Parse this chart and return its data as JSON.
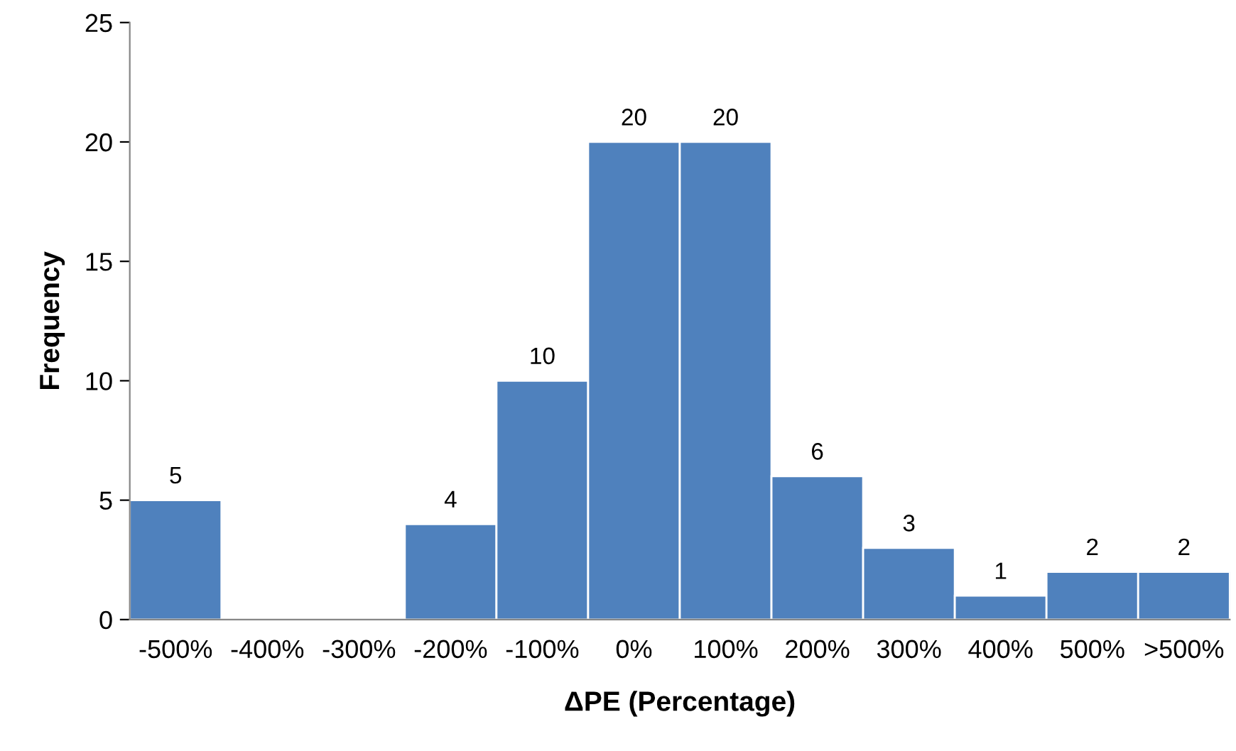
{
  "chart_data": {
    "type": "bar",
    "xlabel": "ΔPE (Percentage)",
    "ylabel": "Frequency",
    "categories": [
      "-500%",
      "-400%",
      "-300%",
      "-200%",
      "-100%",
      "0%",
      "100%",
      "200%",
      "300%",
      "400%",
      "500%",
      ">500%"
    ],
    "values": [
      5,
      0,
      0,
      4,
      10,
      20,
      20,
      6,
      3,
      1,
      2,
      2
    ],
    "value_labels": [
      "5",
      null,
      null,
      "4",
      "10",
      "20",
      "20",
      "6",
      "3",
      "1",
      "2",
      "2"
    ],
    "color": "#4f81bd",
    "ylim": [
      0,
      25
    ],
    "yticks": [
      0,
      5,
      10,
      15,
      20,
      25
    ],
    "grid": false,
    "legend": false
  }
}
